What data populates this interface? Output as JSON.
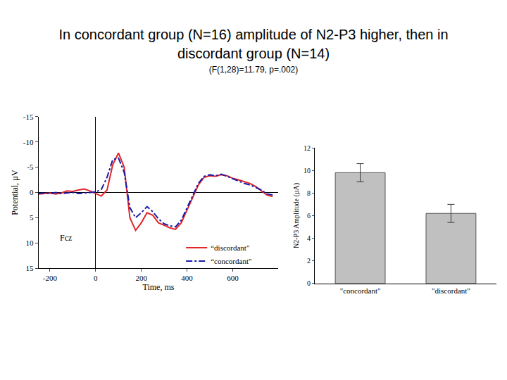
{
  "title": "In concordant group (N=16) amplitude of N2-P3 higher, then in discordant group (N=14)",
  "subtitle": "(F(1,28)=11.79, p=.002)",
  "chart_data": [
    {
      "type": "line",
      "x_label": "Time, ms",
      "y_label": "Potential, µV",
      "x": [
        -250,
        -225,
        -200,
        -175,
        -150,
        -125,
        -100,
        -75,
        -50,
        -25,
        0,
        25,
        50,
        75,
        100,
        125,
        150,
        175,
        200,
        225,
        250,
        275,
        300,
        325,
        350,
        375,
        400,
        425,
        450,
        475,
        500,
        525,
        550,
        575,
        600,
        625,
        650,
        675,
        700,
        725,
        750,
        775
      ],
      "series": [
        {
          "name": "“discordant\"",
          "color": "#e0262b",
          "line_style": "solid",
          "values": [
            0.3,
            0.2,
            0.1,
            0.3,
            0.1,
            -0.3,
            -0.2,
            -0.5,
            -0.7,
            -0.3,
            0.2,
            0.7,
            -0.5,
            -5.5,
            -7.8,
            -5,
            5,
            7.5,
            6,
            4,
            4.5,
            6,
            6.5,
            7,
            7.3,
            6,
            3.5,
            1,
            -1.5,
            -3,
            -3.3,
            -3.2,
            -3.5,
            -3.3,
            -2.8,
            -2.5,
            -2.2,
            -1.8,
            -1.2,
            -0.3,
            0.5,
            0.8
          ]
        },
        {
          "name": "“concordant\"",
          "color": "#1a1aa6",
          "line_style": "dashdot",
          "values": [
            0.2,
            0.1,
            0.2,
            0.0,
            0.2,
            0.1,
            0.0,
            0.2,
            0.1,
            0.0,
            -0.1,
            -0.6,
            -3,
            -6.5,
            -6.8,
            -4,
            3,
            5,
            4,
            2.8,
            3.8,
            5.2,
            6.2,
            6.6,
            6.8,
            5.5,
            3,
            0.5,
            -1.8,
            -3.2,
            -3.5,
            -3.3,
            -3.6,
            -3.2,
            -2.7,
            -2.3,
            -1.8,
            -1.5,
            -1,
            -0.5,
            0.3,
            0.5
          ]
        }
      ],
      "xlim": [
        -250,
        800
      ],
      "xticks": [
        -200,
        0,
        200,
        400,
        600
      ],
      "ylim": [
        15,
        -15
      ],
      "yticks": [
        -15,
        -10,
        -5,
        0,
        5,
        10,
        15
      ],
      "annotations": [
        {
          "text": "Fcz",
          "x": -130,
          "y": 9
        }
      ],
      "legend": "lower right",
      "grid": false
    },
    {
      "type": "bar",
      "y_label": "N2-P3 Amplitude (µA)",
      "categories": [
        "\"concordant\"",
        "\"discordant\""
      ],
      "values": [
        9.8,
        6.2
      ],
      "errors": [
        0.8,
        0.8
      ],
      "color": "#c0c0c0",
      "ylim": [
        0,
        12
      ],
      "yticks": [
        0,
        2,
        4,
        6,
        8,
        10,
        12
      ],
      "grid": false
    }
  ]
}
